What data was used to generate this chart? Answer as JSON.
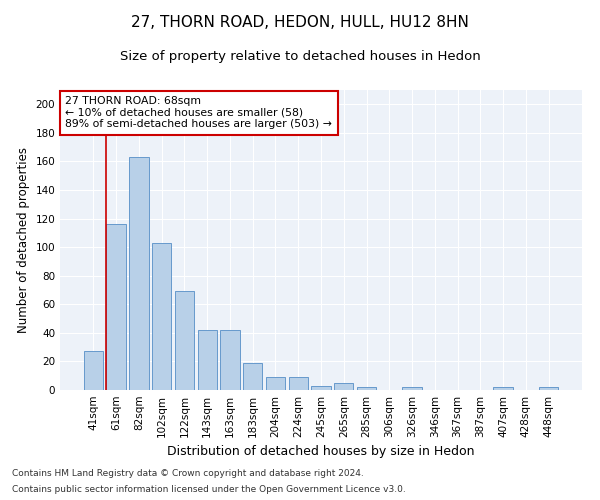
{
  "title": "27, THORN ROAD, HEDON, HULL, HU12 8HN",
  "subtitle": "Size of property relative to detached houses in Hedon",
  "xlabel": "Distribution of detached houses by size in Hedon",
  "ylabel": "Number of detached properties",
  "categories": [
    "41sqm",
    "61sqm",
    "82sqm",
    "102sqm",
    "122sqm",
    "143sqm",
    "163sqm",
    "183sqm",
    "204sqm",
    "224sqm",
    "245sqm",
    "265sqm",
    "285sqm",
    "306sqm",
    "326sqm",
    "346sqm",
    "367sqm",
    "387sqm",
    "407sqm",
    "428sqm",
    "448sqm"
  ],
  "values": [
    27,
    116,
    163,
    103,
    69,
    42,
    42,
    19,
    9,
    9,
    3,
    5,
    2,
    0,
    2,
    0,
    0,
    0,
    2,
    0,
    2
  ],
  "bar_color": "#b8d0e8",
  "bar_edge_color": "#6699cc",
  "red_line_x": 0.575,
  "annotation_text": "27 THORN ROAD: 68sqm\n← 10% of detached houses are smaller (58)\n89% of semi-detached houses are larger (503) →",
  "annotation_box_color": "#ffffff",
  "annotation_box_edge_color": "#cc0000",
  "red_line_color": "#cc0000",
  "ylim": [
    0,
    210
  ],
  "yticks": [
    0,
    20,
    40,
    60,
    80,
    100,
    120,
    140,
    160,
    180,
    200
  ],
  "footer_line1": "Contains HM Land Registry data © Crown copyright and database right 2024.",
  "footer_line2": "Contains public sector information licensed under the Open Government Licence v3.0.",
  "background_color": "#edf2f9",
  "title_fontsize": 11,
  "subtitle_fontsize": 9.5,
  "xlabel_fontsize": 9,
  "ylabel_fontsize": 8.5,
  "tick_fontsize": 7.5,
  "footer_fontsize": 6.5
}
